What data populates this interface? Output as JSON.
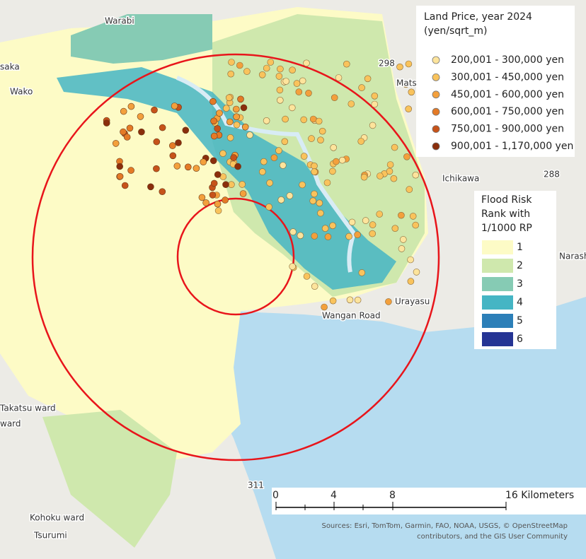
{
  "land_price_legend": {
    "title": "Land Price, year 2024",
    "subtitle": "(yen/sqrt_m)",
    "classes": [
      {
        "label": "200,001 - 300,000 yen",
        "color": "#fde49c"
      },
      {
        "label": "300,001 - 450,000 yen",
        "color": "#f9c35c"
      },
      {
        "label": "450,001 - 600,000 yen",
        "color": "#f3a03c"
      },
      {
        "label": "600,001 - 750,000 yen",
        "color": "#e47a26"
      },
      {
        "label": "750,001 - 900,000 yen",
        "color": "#c6531a"
      },
      {
        "label": "900,001 - 1,170,000 yen",
        "color": "#8a2e0c"
      }
    ]
  },
  "flood_legend": {
    "title_lines": [
      "Flood Risk",
      "Rank with",
      "1/1000 RP"
    ],
    "classes": [
      {
        "label": "1",
        "color": "#fdfbc6"
      },
      {
        "label": "2",
        "color": "#cfe8ad"
      },
      {
        "label": "3",
        "color": "#86cbb4"
      },
      {
        "label": "4",
        "color": "#45b5c4"
      },
      {
        "label": "5",
        "color": "#2c7fb8"
      },
      {
        "label": "6",
        "color": "#253494"
      }
    ]
  },
  "scale_bar": {
    "labels": [
      "0",
      "4",
      "8",
      "16 Kilometers"
    ]
  },
  "place_labels": [
    "Warabi",
    "saka",
    "Wako",
    "Matsu",
    "Ichikawa",
    "Narash",
    "Urayasu",
    "Wangan Road",
    "Takatsu ward",
    "ward",
    "Kohoku ward",
    "Tsurumi",
    "298",
    "288",
    "311"
  ],
  "attribution": [
    "Sources: Esri, TomTom, Garmin, FAO, NOAA, USGS, © OpenStreetMap",
    "contributors, and the GIS User Community"
  ]
}
